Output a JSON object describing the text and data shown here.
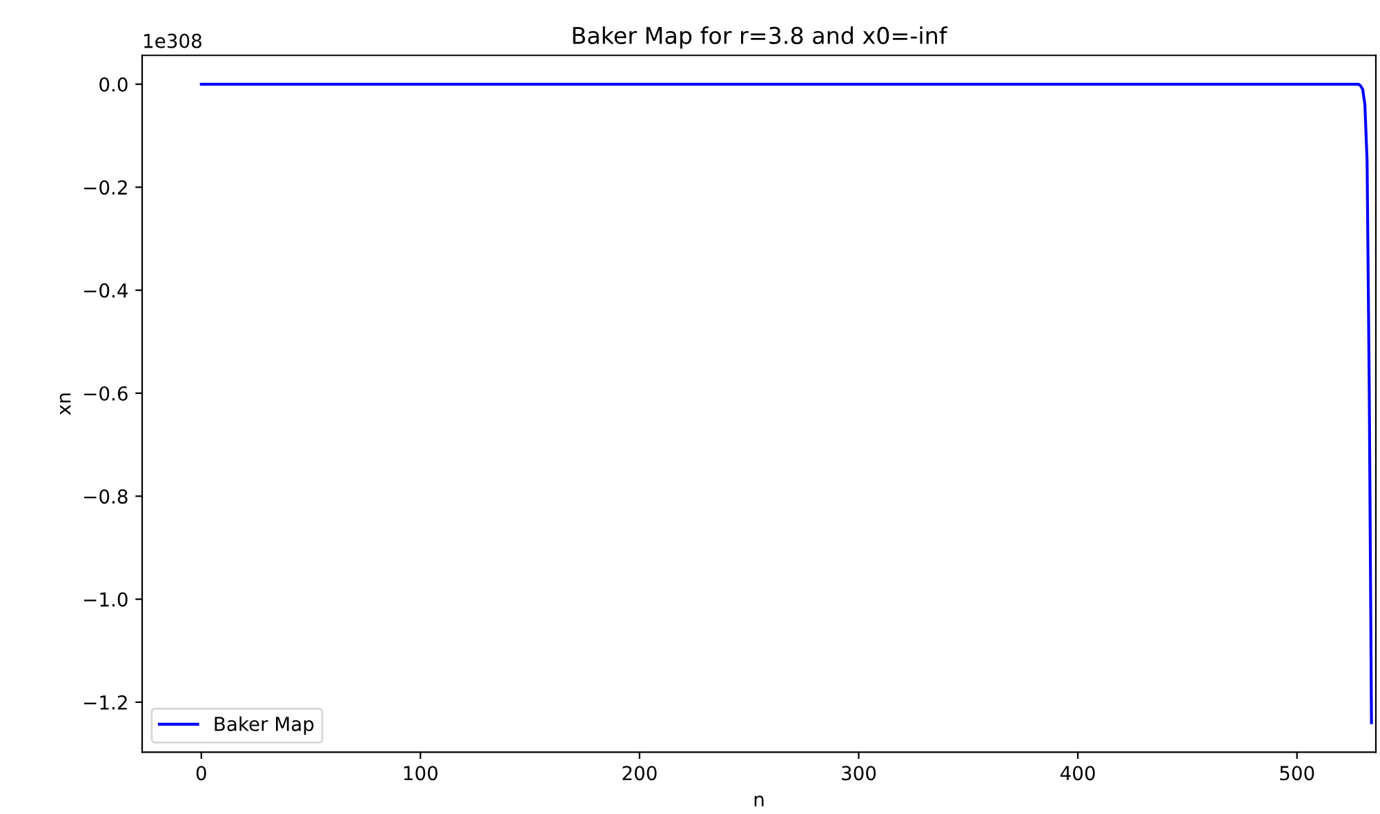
{
  "chart_data": {
    "type": "line",
    "title": "Baker Map for r=3.8 and x0=-inf",
    "xlabel": "n",
    "ylabel": "xn",
    "annotations": [
      "1e308"
    ],
    "x": [
      0,
      100,
      200,
      300,
      400,
      500,
      528,
      529,
      530,
      531,
      532,
      533,
      534
    ],
    "series": [
      {
        "name": "Baker Map",
        "color": "#0000ff",
        "values": [
          0,
          0,
          0,
          0,
          0,
          0,
          0,
          -0.003,
          -0.01,
          -0.04,
          -0.15,
          -0.6,
          -1.24
        ]
      }
    ],
    "xlim": [
      -27,
      536
    ],
    "xticks": [
      0,
      100,
      200,
      300,
      400,
      500
    ],
    "ylim": [
      -1.297,
      0.056
    ],
    "yticks": [
      {
        "value": 0,
        "label": "0.0"
      },
      {
        "value": -0.2,
        "label": "−0.2"
      },
      {
        "value": -0.4,
        "label": "−0.4"
      },
      {
        "value": -0.6,
        "label": "−0.6"
      },
      {
        "value": -0.8,
        "label": "−0.8"
      },
      {
        "value": -1.0,
        "label": "−1.0"
      },
      {
        "value": -1.2,
        "label": "−1.2"
      }
    ],
    "legend": "lower left",
    "grid": false,
    "marker": "none",
    "line_style": "solid"
  }
}
